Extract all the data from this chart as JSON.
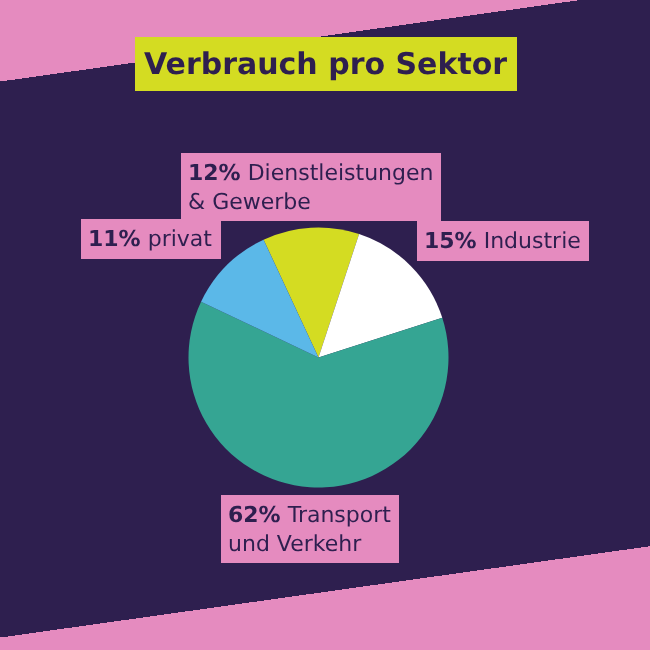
{
  "chart_data": {
    "type": "pie",
    "title": "Verbrauch pro Sektor",
    "categories": [
      "Dienstleistungen & Gewerbe",
      "Industrie",
      "Transport und Verkehr",
      "privat"
    ],
    "values": [
      12,
      15,
      62,
      11
    ],
    "colors": [
      "#d4dc22",
      "#ffffff",
      "#35a593",
      "#5bb8e8"
    ],
    "value_labels": [
      "12%",
      "15%",
      "62%",
      "11%"
    ]
  }
}
